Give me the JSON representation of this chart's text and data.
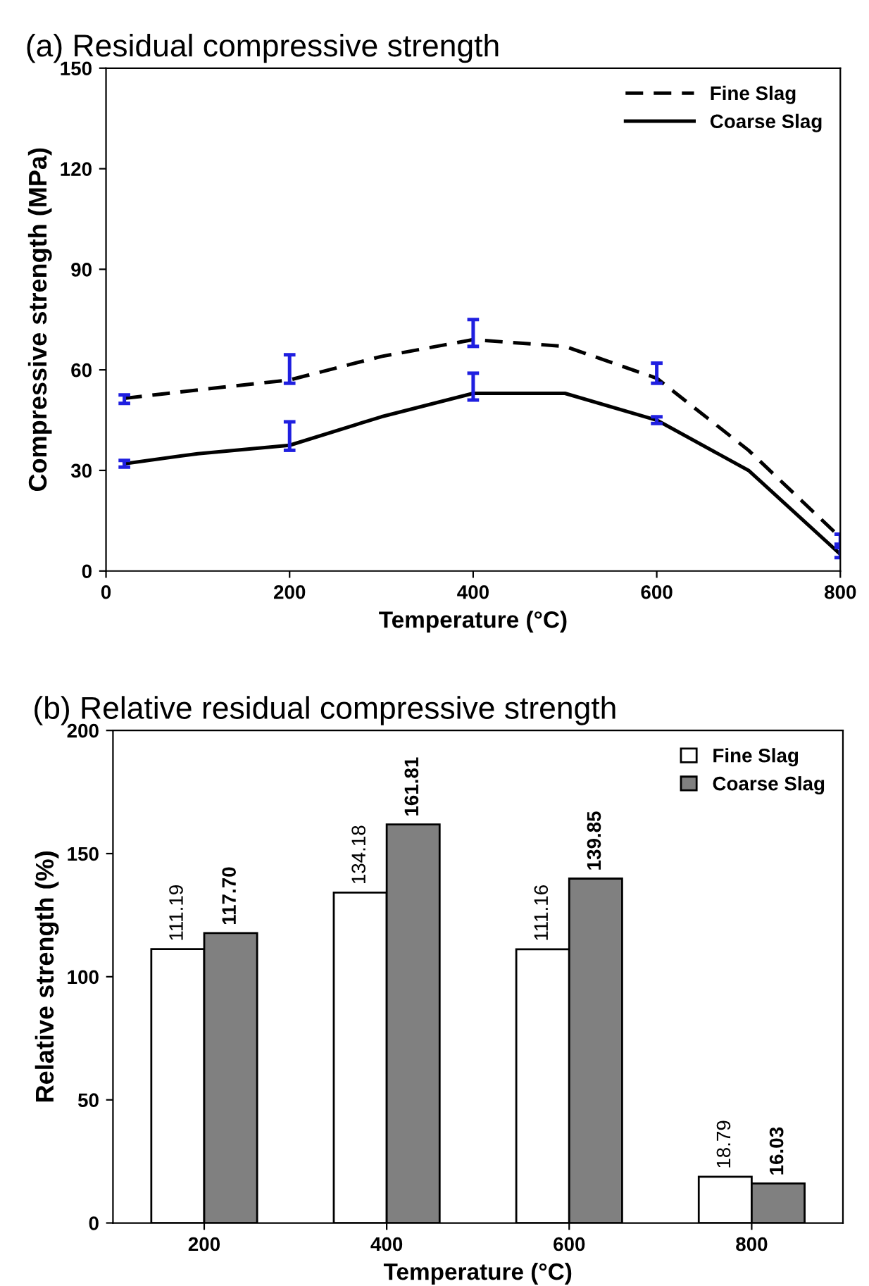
{
  "chart_data": [
    {
      "type": "line",
      "title": "(a) Residual compressive strength",
      "xlabel": "Temperature (°C)",
      "ylabel": "Compressive strength (MPa)",
      "x": [
        20,
        100,
        200,
        300,
        400,
        500,
        600,
        700,
        800
      ],
      "series": [
        {
          "name": "Fine Slag",
          "color": "#000000",
          "line_style": "dashed",
          "values": [
            51.5,
            54,
            57,
            64,
            69,
            67,
            57.5,
            36,
            10
          ],
          "errors": [
            [
              50,
              52.5
            ],
            null,
            [
              56,
              64.5
            ],
            null,
            [
              67,
              75
            ],
            null,
            [
              56,
              62
            ],
            null,
            [
              8,
              11
            ]
          ]
        },
        {
          "name": "Coarse Slag",
          "color": "#000000",
          "line_style": "solid",
          "values": [
            32,
            35,
            37.5,
            46,
            53,
            53,
            45,
            30,
            5
          ],
          "errors": [
            [
              31,
              33
            ],
            null,
            [
              36,
              44.5
            ],
            null,
            [
              51,
              59
            ],
            null,
            [
              44,
              46
            ],
            null,
            [
              4,
              7
            ]
          ]
        }
      ],
      "xlim": [
        0,
        800
      ],
      "xticks": [
        0,
        200,
        400,
        600,
        800
      ],
      "ylim": [
        0,
        150
      ],
      "yticks": [
        0,
        30,
        60,
        90,
        120,
        150
      ],
      "grid": false,
      "legend": "top right",
      "marker": "none"
    },
    {
      "type": "bar",
      "title": "(b) Relative residual compressive strength",
      "xlabel": "Temperature (°C)",
      "ylabel": "Relative strength (%)",
      "categories": [
        "200",
        "400",
        "600",
        "800"
      ],
      "series": [
        {
          "name": "Fine Slag",
          "color": "#ffffff",
          "values": [
            111.19,
            134.18,
            111.16,
            18.79
          ],
          "value_labels": [
            "111.19",
            "134.18",
            "111.16",
            "18.79"
          ]
        },
        {
          "name": "Coarse Slag",
          "color": "#808080",
          "values": [
            117.7,
            161.81,
            139.85,
            16.03
          ],
          "value_labels": [
            "117.70",
            "161.81",
            "139.85",
            "16.03"
          ]
        }
      ],
      "ylim": [
        0,
        200
      ],
      "yticks": [
        0,
        50,
        100,
        150,
        200
      ],
      "grid": false,
      "legend": "top right"
    }
  ]
}
